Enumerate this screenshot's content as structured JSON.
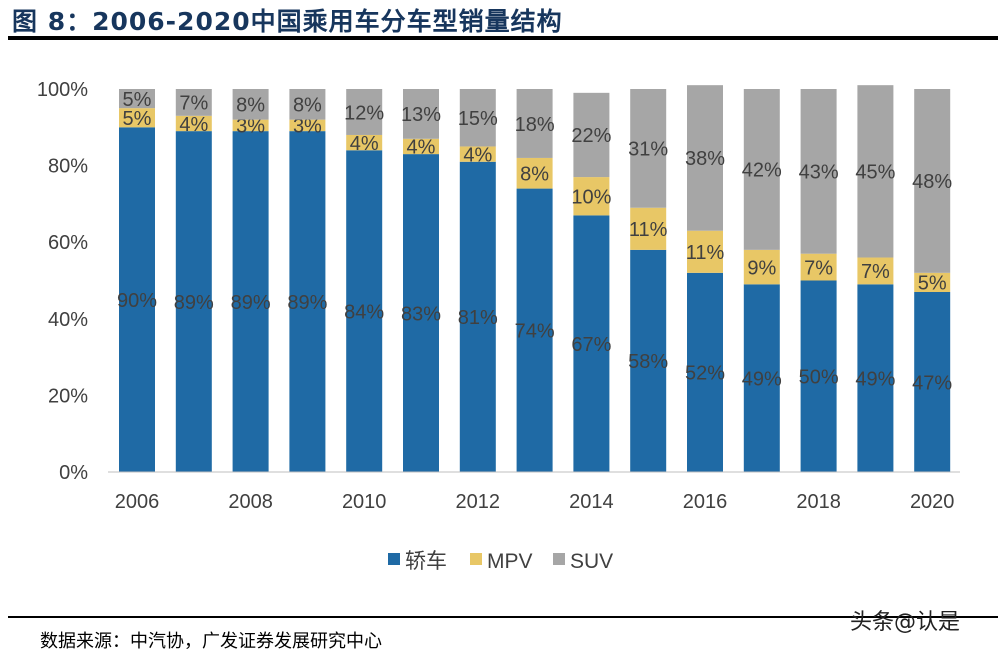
{
  "title": "图 8：2006-2020中国乘用车分车型销量结构",
  "source": "数据来源：中汽协，广发证券发展研究中心",
  "watermark": "头条@认是",
  "chart_data": {
    "type": "stacked-bar",
    "categories": [
      "2006",
      "2007",
      "2008",
      "2009",
      "2010",
      "2011",
      "2012",
      "2013",
      "2014",
      "2015",
      "2016",
      "2017",
      "2018",
      "2019",
      "2020"
    ],
    "x_tick_labels": [
      "2006",
      "2008",
      "2010",
      "2012",
      "2014",
      "2016",
      "2018",
      "2020"
    ],
    "y_tick_labels": [
      "0%",
      "20%",
      "40%",
      "60%",
      "80%",
      "100%"
    ],
    "ylim": [
      0,
      100
    ],
    "grid": false,
    "legend_position": "bottom",
    "series": [
      {
        "name": "轿车",
        "color": "#1f6aa5",
        "values": [
          90,
          89,
          89,
          89,
          84,
          83,
          81,
          74,
          67,
          58,
          52,
          49,
          50,
          49,
          47
        ]
      },
      {
        "name": "MPV",
        "color": "#e8c766",
        "values": [
          5,
          4,
          3,
          3,
          4,
          4,
          4,
          8,
          10,
          11,
          11,
          9,
          7,
          7,
          5
        ]
      },
      {
        "name": "SUV",
        "color": "#a6a6a6",
        "values": [
          5,
          7,
          8,
          8,
          12,
          13,
          15,
          18,
          22,
          31,
          38,
          42,
          43,
          45,
          48
        ]
      }
    ]
  }
}
